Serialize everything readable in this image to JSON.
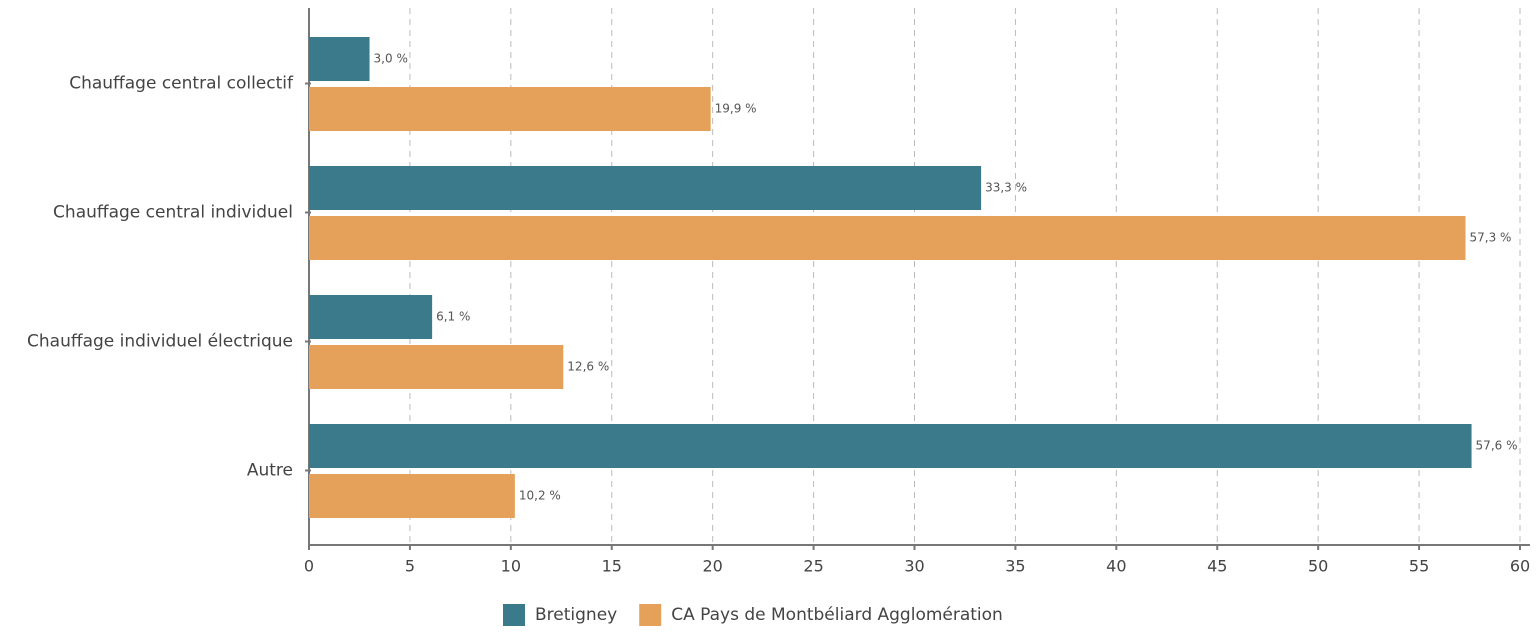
{
  "chart_data": {
    "type": "hbar",
    "categories": [
      "Chauffage central collectif",
      "Chauffage central individuel",
      "Chauffage individuel électrique",
      "Autre"
    ],
    "series": [
      {
        "name": "Bretigney",
        "color": "#3a7a8a",
        "values": [
          3.0,
          33.3,
          6.1,
          57.6
        ],
        "value_labels": [
          "3,0 %",
          "33,3 %",
          "6,1 %",
          "57,6 %"
        ]
      },
      {
        "name": "CA Pays de Montbéliard Agglomération",
        "color": "#e5a05a",
        "values": [
          19.9,
          57.3,
          12.6,
          10.2
        ],
        "value_labels": [
          "19,9 %",
          "57,3 %",
          "12,6 %",
          "10,2 %"
        ]
      }
    ],
    "xlim": [
      0,
      60
    ],
    "xticks": [
      0,
      5,
      10,
      15,
      20,
      25,
      30,
      35,
      40,
      45,
      50,
      55,
      60
    ],
    "grid": true,
    "legend": "bottom"
  }
}
